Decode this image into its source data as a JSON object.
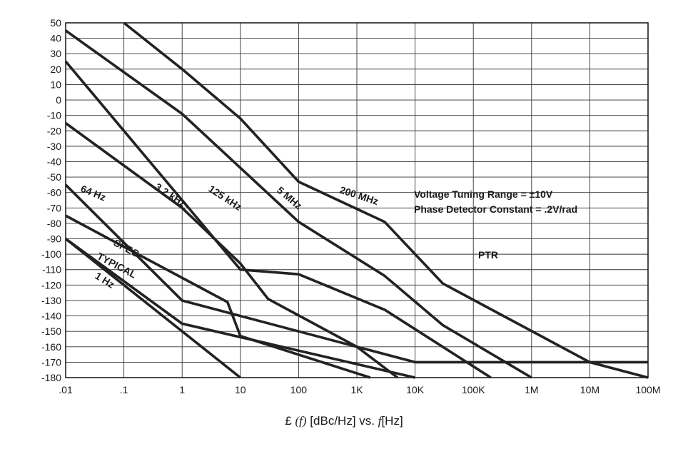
{
  "chart_data": {
    "type": "line",
    "xscale": "log",
    "xlim": [
      0.01,
      100000000
    ],
    "ylim": [
      -180,
      50
    ],
    "grid": true,
    "x_tick_labels": [
      ".01",
      ".1",
      "1",
      "10",
      "100",
      "1K",
      "10K",
      "100K",
      "1M",
      "10M",
      "100M"
    ],
    "x_tick_values": [
      0.01,
      0.1,
      1,
      10,
      100,
      1000,
      10000,
      100000,
      1000000,
      10000000,
      100000000
    ],
    "y_ticks": [
      50,
      40,
      30,
      20,
      10,
      0,
      -10,
      -20,
      -30,
      -40,
      -50,
      -60,
      -70,
      -80,
      -90,
      -100,
      -110,
      -120,
      -130,
      -140,
      -150,
      -160,
      -170,
      -180
    ],
    "xlabel": {
      "symbol": "£",
      "func": "(f)",
      "units": "[dBc/Hz] vs.",
      "var": "f",
      "var_units": "[Hz]"
    },
    "annotations": [
      "Voltage Tuning Range = ±10V",
      "Phase Detector Constant = .2V/rad",
      "PTR"
    ],
    "series": [
      {
        "name": "200 MHz",
        "points": [
          [
            0.1,
            50
          ],
          [
            1,
            20
          ],
          [
            10,
            -12
          ],
          [
            100,
            -53
          ],
          [
            3000,
            -79
          ],
          [
            30000,
            -119
          ],
          [
            10000000,
            -170
          ],
          [
            100000000,
            -180
          ]
        ]
      },
      {
        "name": "5 MHz",
        "points": [
          [
            0.01,
            45
          ],
          [
            1,
            -9
          ],
          [
            100,
            -79
          ],
          [
            3000,
            -114
          ],
          [
            30000,
            -146
          ],
          [
            1000000,
            -180
          ]
        ]
      },
      {
        "name": "125 kHz",
        "points": [
          [
            0.01,
            25
          ],
          [
            0.1,
            -20
          ],
          [
            10,
            -110
          ],
          [
            100,
            -113
          ],
          [
            3000,
            -136
          ],
          [
            200000,
            -180
          ]
        ]
      },
      {
        "name": "3.2 kHz",
        "points": [
          [
            0.01,
            -15
          ],
          [
            1,
            -70
          ],
          [
            10,
            -106
          ],
          [
            30,
            -129
          ],
          [
            1000,
            -160
          ],
          [
            5000,
            -180
          ]
        ]
      },
      {
        "name": "64 Hz",
        "points": [
          [
            0.01,
            -55
          ],
          [
            1,
            -130
          ],
          [
            10000,
            -170
          ],
          [
            100000000,
            -170
          ]
        ]
      },
      {
        "name": "SPEC",
        "points": [
          [
            0.01,
            -75
          ],
          [
            6,
            -131
          ],
          [
            10,
            -153
          ],
          [
            1700,
            -180
          ]
        ]
      },
      {
        "name": "TYPICAL",
        "points": [
          [
            0.01,
            -90
          ],
          [
            1,
            -145
          ],
          [
            10000,
            -180
          ]
        ]
      },
      {
        "name": "1 Hz",
        "points": [
          [
            0.01,
            -90
          ],
          [
            10,
            -180
          ]
        ]
      }
    ],
    "curve_labels": [
      "200 MHz",
      "5 MHz",
      "125 kHz",
      "3.2 kHz",
      "64 Hz",
      "SPEC",
      "TYPICAL",
      "1 Hz"
    ]
  }
}
